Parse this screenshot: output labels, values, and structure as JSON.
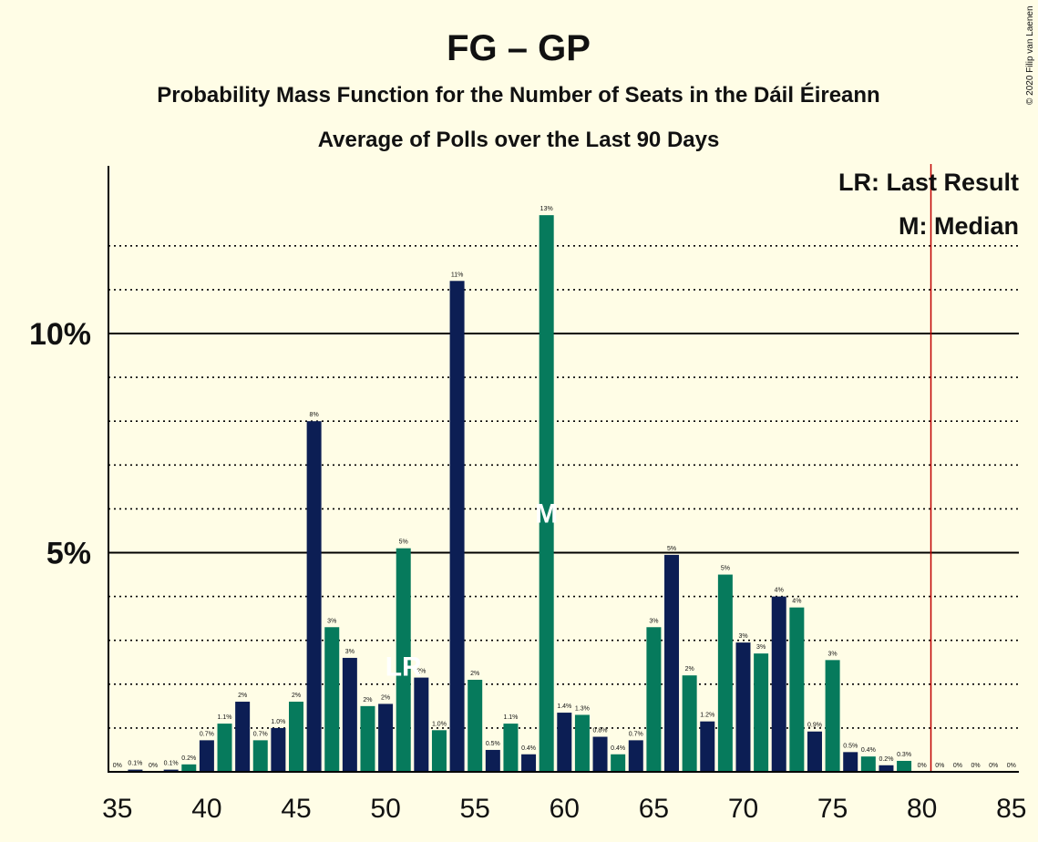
{
  "chart_data": {
    "type": "bar",
    "title": "FG – GP",
    "subtitle1": "Probability Mass Function for the Number of Seats in the Dáil Éireann",
    "subtitle2": "Average of Polls over the Last 90 Days",
    "copyright": "© 2020 Filip van Laenen",
    "legend": {
      "lr": "LR: Last Result",
      "m": "M: Median"
    },
    "y_ticks": [
      {
        "value": 5,
        "label": "5%"
      },
      {
        "value": 10,
        "label": "10%"
      }
    ],
    "x_ticks": [
      "35",
      "40",
      "45",
      "50",
      "55",
      "60",
      "65",
      "70",
      "75",
      "80",
      "85"
    ],
    "xlim": [
      35,
      85
    ],
    "ylim": [
      0,
      13.8
    ],
    "last_result": 51,
    "majority_line": 80.5,
    "median": 59,
    "colors": {
      "navy": "#0c1e54",
      "green": "#067a5c",
      "majority": "#c00000",
      "grid": "#000000"
    },
    "bars": [
      {
        "x": 36,
        "value": 0.05,
        "label": "0.1%",
        "color": "navy"
      },
      {
        "x": 35,
        "value": 0.0,
        "label": "0%",
        "color": "green"
      },
      {
        "x": 37,
        "value": 0.0,
        "label": "0%",
        "color": "green"
      },
      {
        "x": 38,
        "value": 0.05,
        "label": "0.1%",
        "color": "navy"
      },
      {
        "x": 39,
        "value": 0.17,
        "label": "0.2%",
        "color": "green"
      },
      {
        "x": 40,
        "value": 0.72,
        "label": "0.7%",
        "color": "navy"
      },
      {
        "x": 41,
        "value": 1.1,
        "label": "1.1%",
        "color": "green"
      },
      {
        "x": 42,
        "value": 1.6,
        "label": "2%",
        "color": "navy"
      },
      {
        "x": 43,
        "value": 0.72,
        "label": "0.7%",
        "color": "green"
      },
      {
        "x": 44,
        "value": 1.0,
        "label": "1.0%",
        "color": "navy"
      },
      {
        "x": 45,
        "value": 1.6,
        "label": "2%",
        "color": "green"
      },
      {
        "x": 46,
        "value": 8.0,
        "label": "8%",
        "color": "navy"
      },
      {
        "x": 47,
        "value": 3.3,
        "label": "3%",
        "color": "green"
      },
      {
        "x": 48,
        "value": 2.6,
        "label": "3%",
        "color": "navy"
      },
      {
        "x": 49,
        "value": 1.5,
        "label": "2%",
        "color": "green"
      },
      {
        "x": 50,
        "value": 1.55,
        "label": "2%",
        "color": "navy"
      },
      {
        "x": 51,
        "value": 5.1,
        "label": "5%",
        "color": "green"
      },
      {
        "x": 52,
        "value": 2.15,
        "label": "2%",
        "color": "navy"
      },
      {
        "x": 53,
        "value": 0.95,
        "label": "1.0%",
        "color": "green"
      },
      {
        "x": 54,
        "value": 11.2,
        "label": "11%",
        "color": "navy"
      },
      {
        "x": 55,
        "value": 2.1,
        "label": "2%",
        "color": "green"
      },
      {
        "x": 56,
        "value": 0.5,
        "label": "0.5%",
        "color": "navy"
      },
      {
        "x": 57,
        "value": 1.1,
        "label": "1.1%",
        "color": "green"
      },
      {
        "x": 58,
        "value": 0.4,
        "label": "0.4%",
        "color": "navy"
      },
      {
        "x": 59,
        "value": 12.7,
        "label": "13%",
        "color": "green"
      },
      {
        "x": 60,
        "value": 1.35,
        "label": "1.4%",
        "color": "navy"
      },
      {
        "x": 61,
        "value": 1.3,
        "label": "1.3%",
        "color": "green"
      },
      {
        "x": 62,
        "value": 0.8,
        "label": "0.8%",
        "color": "navy"
      },
      {
        "x": 63,
        "value": 0.4,
        "label": "0.4%",
        "color": "green"
      },
      {
        "x": 64,
        "value": 0.72,
        "label": "0.7%",
        "color": "navy"
      },
      {
        "x": 65,
        "value": 3.3,
        "label": "3%",
        "color": "green"
      },
      {
        "x": 66,
        "value": 4.95,
        "label": "5%",
        "color": "navy"
      },
      {
        "x": 67,
        "value": 2.2,
        "label": "2%",
        "color": "green"
      },
      {
        "x": 68,
        "value": 1.15,
        "label": "1.2%",
        "color": "navy"
      },
      {
        "x": 69,
        "value": 4.5,
        "label": "5%",
        "color": "green"
      },
      {
        "x": 70,
        "value": 2.95,
        "label": "3%",
        "color": "navy"
      },
      {
        "x": 71,
        "value": 2.7,
        "label": "3%",
        "color": "green"
      },
      {
        "x": 72,
        "value": 4.0,
        "label": "4%",
        "color": "navy"
      },
      {
        "x": 73,
        "value": 3.75,
        "label": "4%",
        "color": "green"
      },
      {
        "x": 74,
        "value": 0.92,
        "label": "0.9%",
        "color": "navy"
      },
      {
        "x": 75,
        "value": 2.55,
        "label": "3%",
        "color": "green"
      },
      {
        "x": 76,
        "value": 0.45,
        "label": "0.5%",
        "color": "navy"
      },
      {
        "x": 77,
        "value": 0.35,
        "label": "0.4%",
        "color": "green"
      },
      {
        "x": 78,
        "value": 0.15,
        "label": "0.2%",
        "color": "navy"
      },
      {
        "x": 79,
        "value": 0.25,
        "label": "0.3%",
        "color": "green"
      },
      {
        "x": 80,
        "value": 0.0,
        "label": "0%",
        "color": "navy"
      },
      {
        "x": 81,
        "value": 0.0,
        "label": "0%",
        "color": "green"
      },
      {
        "x": 82,
        "value": 0.0,
        "label": "0%",
        "color": "navy"
      },
      {
        "x": 83,
        "value": 0.0,
        "label": "0%",
        "color": "green"
      },
      {
        "x": 84,
        "value": 0.0,
        "label": "0%",
        "color": "navy"
      },
      {
        "x": 85,
        "value": 0.0,
        "label": "0%",
        "color": "green"
      }
    ],
    "markers": {
      "lr_text": "LR",
      "median_text": "M"
    }
  }
}
